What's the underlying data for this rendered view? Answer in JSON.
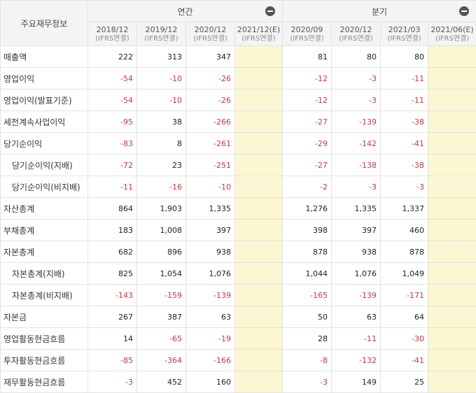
{
  "header": {
    "label": "주요재무정보",
    "annual_group": "연간",
    "quarter_group": "분기",
    "annual_columns": [
      {
        "period": "2018/12",
        "basis": "(IFRS연결)"
      },
      {
        "period": "2019/12",
        "basis": "(IFRS연결)"
      },
      {
        "period": "2020/12",
        "basis": "(IFRS연결)"
      },
      {
        "period": "2021/12(E)",
        "basis": "(IFRS연결)"
      }
    ],
    "quarter_columns": [
      {
        "period": "2020/09",
        "basis": "(IFRS연결)"
      },
      {
        "period": "2020/12",
        "basis": "(IFRS연결)"
      },
      {
        "period": "2021/03",
        "basis": "(IFRS연결)"
      },
      {
        "period": "2021/06(E)",
        "basis": "(IFRS연결)"
      }
    ]
  },
  "rows": [
    {
      "label": "매출액",
      "indent": false,
      "values": [
        "222",
        "313",
        "347",
        "",
        "81",
        "80",
        "80",
        ""
      ]
    },
    {
      "label": "영업이익",
      "indent": false,
      "values": [
        "-54",
        "-10",
        "-26",
        "",
        "-12",
        "-3",
        "-11",
        ""
      ]
    },
    {
      "label": "영업이익(발표기준)",
      "indent": false,
      "values": [
        "-54",
        "-10",
        "-26",
        "",
        "-12",
        "-3",
        "-11",
        ""
      ]
    },
    {
      "label": "세전계속사업이익",
      "indent": false,
      "values": [
        "-95",
        "38",
        "-266",
        "",
        "-27",
        "-139",
        "-38",
        ""
      ]
    },
    {
      "label": "당기순이익",
      "indent": false,
      "values": [
        "-83",
        "8",
        "-261",
        "",
        "-29",
        "-142",
        "-41",
        ""
      ]
    },
    {
      "label": "당기순이익(지배)",
      "indent": true,
      "values": [
        "-72",
        "23",
        "-251",
        "",
        "-27",
        "-138",
        "-38",
        ""
      ]
    },
    {
      "label": "당기순이익(비지배)",
      "indent": true,
      "values": [
        "-11",
        "-16",
        "-10",
        "",
        "-2",
        "-3",
        "-3",
        ""
      ]
    },
    {
      "label": "자산총계",
      "indent": false,
      "values": [
        "864",
        "1,903",
        "1,335",
        "",
        "1,276",
        "1,335",
        "1,337",
        ""
      ]
    },
    {
      "label": "부채총계",
      "indent": false,
      "values": [
        "183",
        "1,008",
        "397",
        "",
        "398",
        "397",
        "460",
        ""
      ]
    },
    {
      "label": "자본총계",
      "indent": false,
      "values": [
        "682",
        "896",
        "938",
        "",
        "878",
        "938",
        "878",
        ""
      ]
    },
    {
      "label": "자본총계(지배)",
      "indent": true,
      "values": [
        "825",
        "1,054",
        "1,076",
        "",
        "1,044",
        "1,076",
        "1,049",
        ""
      ]
    },
    {
      "label": "자본총계(비지배)",
      "indent": true,
      "values": [
        "-143",
        "-159",
        "-139",
        "",
        "-165",
        "-139",
        "-171",
        ""
      ]
    },
    {
      "label": "자본금",
      "indent": false,
      "values": [
        "267",
        "387",
        "63",
        "",
        "50",
        "63",
        "64",
        ""
      ]
    },
    {
      "label": "영업활동현금흐름",
      "indent": false,
      "values": [
        "14",
        "-65",
        "-19",
        "",
        "28",
        "-11",
        "-30",
        ""
      ]
    },
    {
      "label": "투자활동현금흐름",
      "indent": false,
      "values": [
        "-85",
        "-364",
        "-166",
        "",
        "-8",
        "-132",
        "-41",
        ""
      ]
    },
    {
      "label": "재무활동현금흐름",
      "indent": false,
      "values": [
        "-3",
        "452",
        "160",
        "",
        "-3",
        "149",
        "25",
        ""
      ]
    }
  ]
}
